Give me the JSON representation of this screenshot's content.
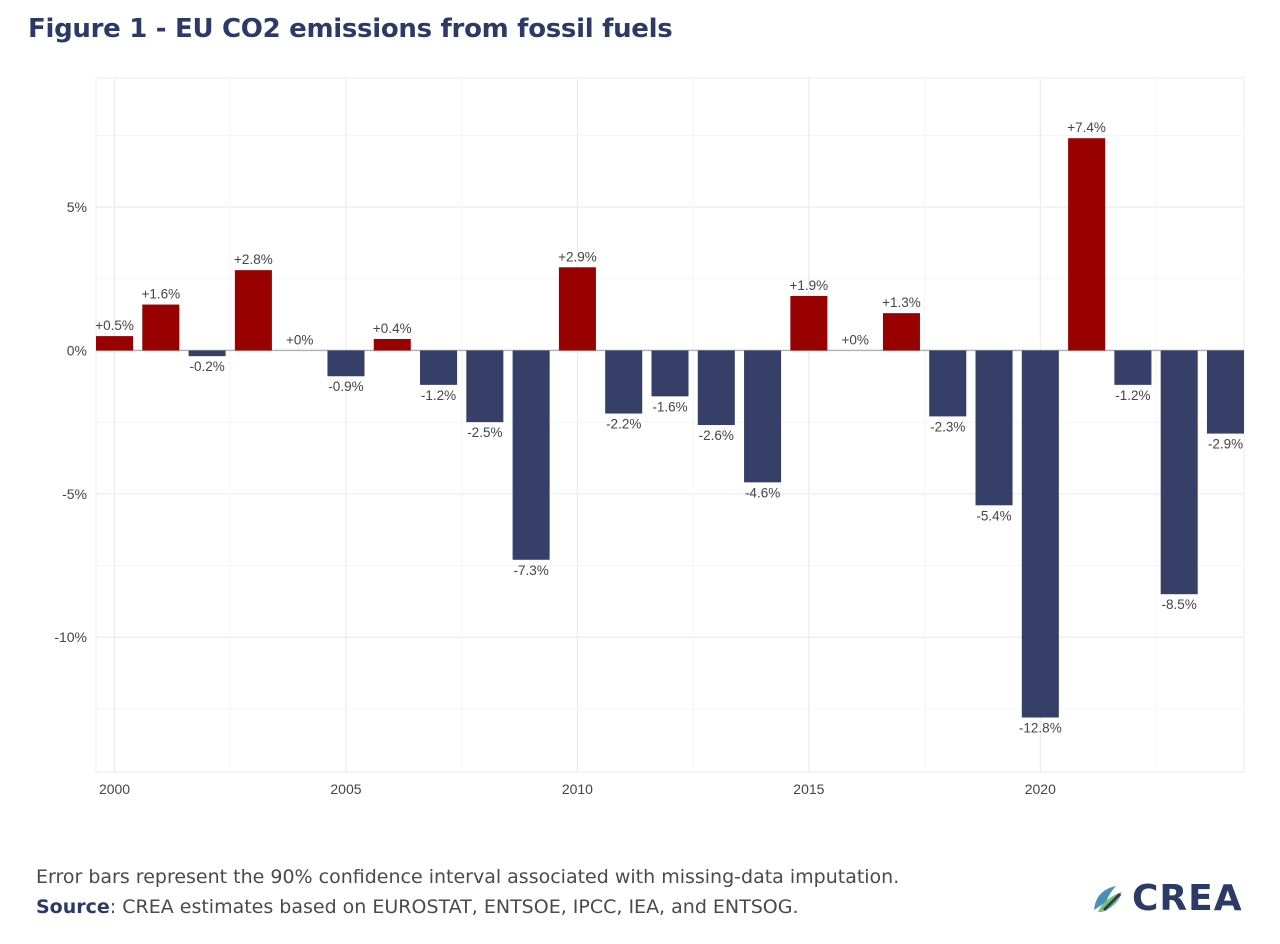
{
  "title": "Figure 1 - EU CO2 emissions from fossil fuels",
  "footnote": {
    "line1": "Error bars represent the 90% confidence interval associated with missing-data imputation.",
    "source_label": "Source",
    "source_text": ": CREA estimates based on EUROSTAT, ENTSOE, IPCC, IEA, and ENTSOG."
  },
  "logo": {
    "text": "CREA",
    "icon": "crea-leaf-icon"
  },
  "colors": {
    "positive": "#990000",
    "negative": "#353f68",
    "grid": "#ebebeb",
    "zero_line": "#b0b0b0"
  },
  "chart_data": {
    "type": "bar",
    "categories": [
      2000,
      2001,
      2002,
      2003,
      2004,
      2005,
      2006,
      2007,
      2008,
      2009,
      2010,
      2011,
      2012,
      2013,
      2014,
      2015,
      2016,
      2017,
      2018,
      2019,
      2020,
      2021,
      2022,
      2023,
      2024
    ],
    "values": [
      0.5,
      1.6,
      -0.2,
      2.8,
      0,
      -0.9,
      0.4,
      -1.2,
      -2.5,
      -7.3,
      2.9,
      -2.2,
      -1.6,
      -2.6,
      -4.6,
      1.9,
      0,
      1.3,
      -2.3,
      -5.4,
      -12.8,
      7.4,
      -1.2,
      -8.5,
      -2.9
    ],
    "labels": [
      "+0.5%",
      "+1.6%",
      "-0.2%",
      "+2.8%",
      "+0%",
      "-0.9%",
      "+0.4%",
      "-1.2%",
      "-2.5%",
      "-7.3%",
      "+2.9%",
      "-2.2%",
      "-1.6%",
      "-2.6%",
      "-4.6%",
      "+1.9%",
      "+0%",
      "+1.3%",
      "-2.3%",
      "-5.4%",
      "-12.8%",
      "+7.4%",
      "-1.2%",
      "-8.5%",
      "-2.9%"
    ],
    "x_ticks": [
      2000,
      2005,
      2010,
      2015,
      2020
    ],
    "y_ticks": [
      5,
      0,
      -5,
      -10
    ],
    "y_tick_labels": [
      "5%",
      "0%",
      "-5%",
      "-10%"
    ],
    "ylim": [
      -14.7,
      9.5
    ],
    "xlim": [
      1999.6,
      2024.4
    ],
    "grid": true
  }
}
